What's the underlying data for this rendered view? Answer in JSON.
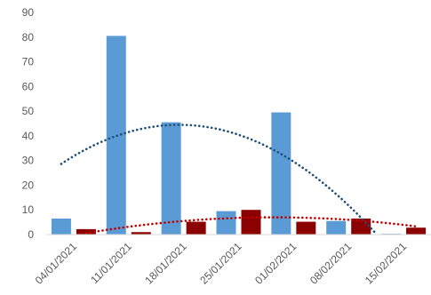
{
  "chart_data": {
    "type": "bar",
    "title": "",
    "xlabel": "",
    "ylabel": "",
    "ylim": [
      0,
      90
    ],
    "yticks": [
      0,
      10,
      20,
      30,
      40,
      50,
      60,
      70,
      80,
      90
    ],
    "grid": false,
    "legend": "none",
    "categories": [
      "04/01/2021",
      "11/01/2021",
      "18/01/2021",
      "25/01/2021",
      "01/02/2021",
      "08/02/2021",
      "15/02/2021"
    ],
    "series": [
      {
        "color": "#5b9bd5",
        "values": [
          6.5,
          80.5,
          45.5,
          9.5,
          49.5,
          5.5,
          0.3
        ]
      },
      {
        "color": "#8b0000",
        "values": [
          2.2,
          1.0,
          5.2,
          10.0,
          5.2,
          6.5,
          2.8
        ]
      }
    ],
    "trendlines": [
      {
        "series_index": 0,
        "type": "polynomial",
        "style": "dotted",
        "color": "#1f4e79"
      },
      {
        "series_index": 1,
        "type": "polynomial",
        "style": "dotted",
        "color": "#c00000"
      }
    ]
  }
}
